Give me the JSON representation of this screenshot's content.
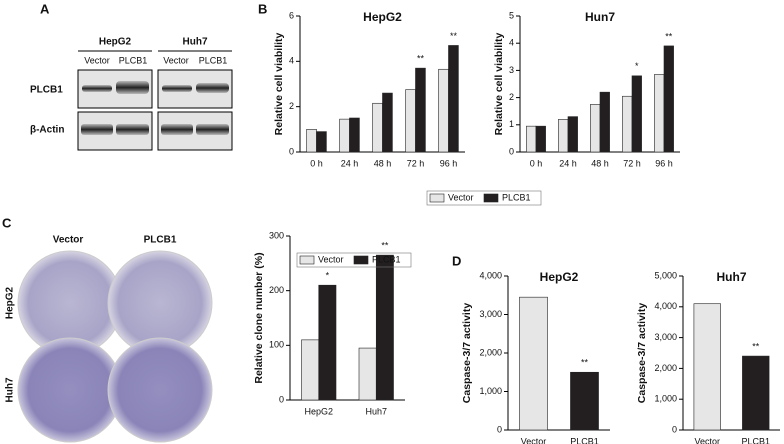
{
  "panels": {
    "A": {
      "label": "A",
      "cell_lines": [
        "HepG2",
        "Huh7"
      ],
      "lanes": [
        "Vector",
        "PLCB1",
        "Vector",
        "PLCB1"
      ],
      "rows": [
        "PLCB1",
        "β-Actin"
      ]
    },
    "B": {
      "label": "B"
    },
    "C": {
      "label": "C",
      "columns": [
        "Vector",
        "PLCB1"
      ],
      "rows": [
        "HepG2",
        "Huh7"
      ]
    },
    "D": {
      "label": "D"
    }
  },
  "chart_data": [
    {
      "type": "bar",
      "title": "HepG2",
      "y_label": "Relative cell viability",
      "categories": [
        "0 h",
        "24 h",
        "48 h",
        "72 h",
        "96 h"
      ],
      "series": [
        {
          "name": "Vector",
          "color": "#e6e6e6",
          "values": [
            1.0,
            1.45,
            2.15,
            2.75,
            3.65
          ]
        },
        {
          "name": "PLCB1",
          "color": "#231f20",
          "values": [
            0.9,
            1.5,
            2.6,
            3.7,
            4.7
          ]
        }
      ],
      "significance": [
        null,
        null,
        null,
        "**",
        "**"
      ],
      "ylim": [
        0,
        6
      ],
      "yticks": [
        0,
        2,
        4,
        6
      ],
      "legend": true
    },
    {
      "type": "bar",
      "title": "Hun7",
      "y_label": "Relative cell viability",
      "categories": [
        "0 h",
        "24 h",
        "48 h",
        "72 h",
        "96 h"
      ],
      "series": [
        {
          "color": "#e6e6e6",
          "values": [
            0.95,
            1.2,
            1.75,
            2.05,
            2.85
          ]
        },
        {
          "color": "#231f20",
          "values": [
            0.95,
            1.3,
            2.2,
            2.8,
            3.9
          ]
        }
      ],
      "significance": [
        null,
        null,
        null,
        "*",
        "**"
      ],
      "ylim": [
        0,
        5
      ],
      "yticks": [
        0,
        1,
        2,
        3,
        4,
        5
      ]
    },
    {
      "type": "bar",
      "y_label": "Relative clone number (%)",
      "categories": [
        "HepG2",
        "Huh7"
      ],
      "series": [
        {
          "name": "Vector",
          "color": "#e6e6e6",
          "values": [
            110,
            95
          ]
        },
        {
          "name": "PLCB1",
          "color": "#231f20",
          "values": [
            210,
            265
          ]
        }
      ],
      "significance": [
        "*",
        "**"
      ],
      "ylim": [
        0,
        300
      ],
      "yticks": [
        0,
        100,
        200,
        300
      ],
      "legend": true
    },
    {
      "type": "bar",
      "title": "HepG2",
      "y_label": "Caspase-3/7 activity",
      "categories": [
        "Vector",
        "PLCB1"
      ],
      "values": [
        3450,
        1500
      ],
      "colors": [
        "#e6e6e6",
        "#231f20"
      ],
      "significance": [
        null,
        "**"
      ],
      "ylim": [
        0,
        4000
      ],
      "yticks": [
        0,
        {
          "value": 1000,
          "label": "1,000"
        },
        {
          "value": 2000,
          "label": "2,000"
        },
        {
          "value": 3000,
          "label": "3,000"
        },
        {
          "value": 4000,
          "label": "4,000"
        }
      ]
    },
    {
      "type": "bar",
      "title": "Huh7",
      "y_label": "Caspase-3/7 activity",
      "categories": [
        "Vector",
        "PLCB1"
      ],
      "values": [
        4100,
        2400
      ],
      "colors": [
        "#e6e6e6",
        "#231f20"
      ],
      "significance": [
        null,
        "**"
      ],
      "ylim": [
        0,
        5000
      ],
      "yticks": [
        0,
        {
          "value": 1000,
          "label": "1,000"
        },
        {
          "value": 2000,
          "label": "2,000"
        },
        {
          "value": 3000,
          "label": "3,000"
        },
        {
          "value": 4000,
          "label": "4,000"
        },
        {
          "value": 5000,
          "label": "5,000"
        }
      ]
    }
  ]
}
